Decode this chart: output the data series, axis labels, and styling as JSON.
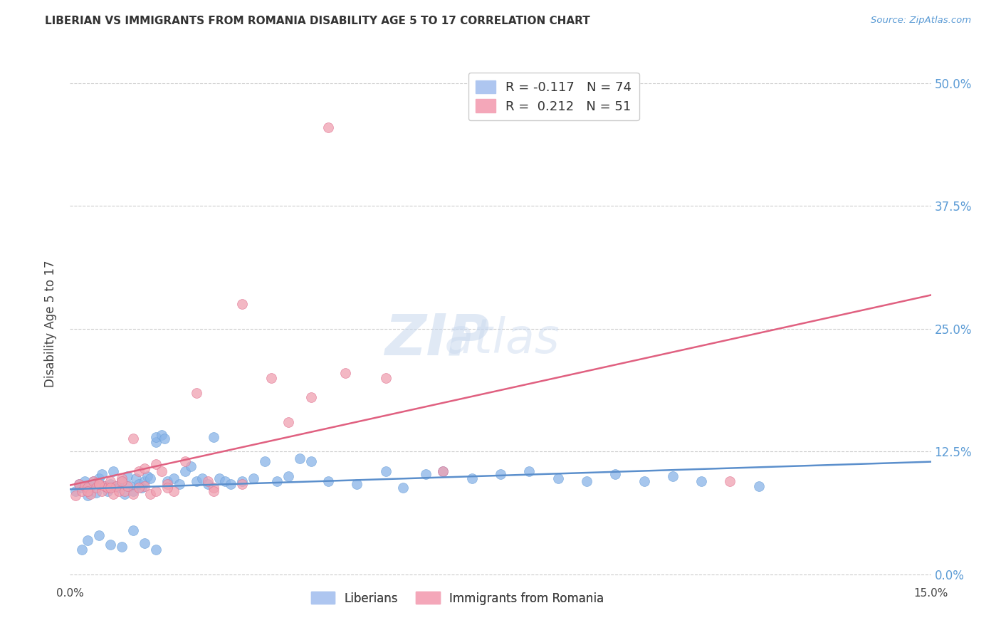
{
  "title": "LIBERIAN VS IMMIGRANTS FROM ROMANIA DISABILITY AGE 5 TO 17 CORRELATION CHART",
  "source": "Source: ZipAtlas.com",
  "ylabel": "Disability Age 5 to 17",
  "ytick_values": [
    0.0,
    12.5,
    25.0,
    37.5,
    50.0
  ],
  "xlim": [
    0.0,
    15.0
  ],
  "ylim": [
    -1.0,
    52.0
  ],
  "liberian_color": "#89b4e8",
  "liberian_edge": "#6a9fd8",
  "romania_color": "#f0a0b0",
  "romania_edge": "#e07090",
  "liberian_line_color": "#5b8fcc",
  "romania_line_color": "#e06080",
  "watermark": "ZIPatlas",
  "background_color": "#ffffff",
  "grid_color": "#cccccc",
  "right_axis_color": "#5b9bd5",
  "liberian_x": [
    0.1,
    0.15,
    0.2,
    0.25,
    0.3,
    0.35,
    0.4,
    0.45,
    0.5,
    0.55,
    0.6,
    0.65,
    0.7,
    0.75,
    0.8,
    0.85,
    0.9,
    0.95,
    1.0,
    1.05,
    1.1,
    1.15,
    1.2,
    1.25,
    1.3,
    1.35,
    1.4,
    1.5,
    1.5,
    1.6,
    1.65,
    1.7,
    1.8,
    1.9,
    2.0,
    2.1,
    2.2,
    2.3,
    2.4,
    2.5,
    2.6,
    2.7,
    2.8,
    3.0,
    3.2,
    3.4,
    3.6,
    3.8,
    4.0,
    4.2,
    4.5,
    5.0,
    5.5,
    5.8,
    6.2,
    6.5,
    7.0,
    7.5,
    8.0,
    8.5,
    9.0,
    9.5,
    10.0,
    10.5,
    11.0,
    12.0,
    0.2,
    0.3,
    0.5,
    0.7,
    0.9,
    1.1,
    1.3,
    1.5
  ],
  "liberian_y": [
    8.5,
    9.2,
    8.8,
    9.5,
    8.0,
    9.0,
    9.5,
    8.3,
    9.8,
    10.2,
    9.0,
    8.5,
    9.2,
    10.5,
    9.0,
    8.8,
    9.5,
    8.2,
    10.0,
    9.0,
    8.5,
    9.8,
    9.2,
    8.8,
    9.5,
    10.0,
    9.8,
    13.5,
    14.0,
    14.2,
    13.8,
    9.5,
    9.8,
    9.2,
    10.5,
    11.0,
    9.5,
    9.8,
    9.2,
    14.0,
    9.8,
    9.5,
    9.2,
    9.5,
    9.8,
    11.5,
    9.5,
    10.0,
    11.8,
    11.5,
    9.5,
    9.2,
    10.5,
    8.8,
    10.2,
    10.5,
    9.8,
    10.2,
    10.5,
    9.8,
    9.5,
    10.2,
    9.5,
    10.0,
    9.5,
    9.0,
    2.5,
    3.5,
    4.0,
    3.0,
    2.8,
    4.5,
    3.2,
    2.5
  ],
  "romania_x": [
    0.1,
    0.15,
    0.2,
    0.25,
    0.3,
    0.35,
    0.4,
    0.45,
    0.5,
    0.55,
    0.6,
    0.65,
    0.7,
    0.75,
    0.8,
    0.85,
    0.9,
    0.95,
    1.0,
    1.1,
    1.2,
    1.3,
    1.4,
    1.5,
    1.6,
    1.7,
    1.8,
    2.0,
    2.2,
    2.4,
    2.5,
    3.0,
    3.5,
    3.8,
    4.5,
    5.5,
    0.3,
    0.5,
    0.7,
    0.9,
    1.1,
    1.3,
    1.5,
    1.7,
    4.2,
    4.8,
    6.5,
    11.5,
    2.5,
    3.0,
    1.2
  ],
  "romania_y": [
    8.0,
    9.2,
    8.5,
    9.0,
    8.8,
    8.2,
    9.5,
    8.8,
    9.2,
    8.5,
    9.0,
    8.8,
    9.5,
    8.2,
    9.0,
    8.5,
    9.8,
    8.5,
    9.0,
    13.8,
    10.5,
    10.8,
    8.2,
    11.2,
    10.5,
    9.2,
    8.5,
    11.5,
    18.5,
    9.5,
    8.8,
    27.5,
    20.0,
    15.5,
    45.5,
    20.0,
    8.5,
    9.2,
    8.8,
    9.5,
    8.2,
    9.0,
    8.5,
    8.8,
    18.0,
    20.5,
    10.5,
    9.5,
    8.5,
    9.2,
    8.8
  ]
}
